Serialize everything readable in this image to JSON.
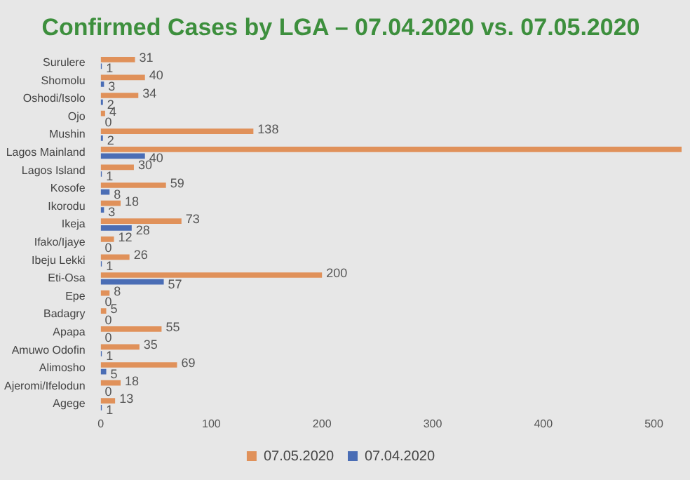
{
  "chart_data": {
    "type": "bar",
    "orientation": "horizontal",
    "title": "Confirmed Cases by LGA – 07.04.2020 vs. 07.05.2020",
    "categories": [
      "Surulere",
      "Shomolu",
      "Oshodi/Isolo",
      "Ojo",
      "Mushin",
      "Lagos Mainland",
      "Lagos Island",
      "Kosofe",
      "Ikorodu",
      "Ikeja",
      "Ifako/Ijaye",
      "Ibeju Lekki",
      "Eti-Osa",
      "Epe",
      "Badagry",
      "Apapa",
      "Amuwo Odofin",
      "Alimosho",
      "Ajeromi/Ifelodun",
      "Agege"
    ],
    "series": [
      {
        "name": "07.05.2020",
        "color": "#e0915a",
        "values": [
          31,
          40,
          34,
          4,
          138,
          525,
          30,
          59,
          18,
          73,
          12,
          26,
          200,
          8,
          5,
          55,
          35,
          69,
          18,
          13
        ],
        "value_labels": [
          "31",
          "40",
          "34",
          "4",
          "138",
          null,
          "30",
          "59",
          "18",
          "73",
          "12",
          "26",
          "200",
          "8",
          "5",
          "55",
          "35",
          "69",
          "18",
          "13"
        ]
      },
      {
        "name": "07.04.2020",
        "color": "#4a6db5",
        "values": [
          1,
          3,
          2,
          0,
          2,
          40,
          1,
          8,
          3,
          28,
          0,
          1,
          57,
          0,
          0,
          0,
          1,
          5,
          0,
          1
        ],
        "value_labels": [
          "1",
          "3",
          "2",
          "0",
          "2",
          "40",
          "1",
          "8",
          "3",
          "28",
          "0",
          "1",
          "57",
          "0",
          "0",
          "0",
          "1",
          "5",
          "0",
          "1"
        ]
      }
    ],
    "xlim": [
      0,
      525
    ],
    "xticks": [
      0,
      100,
      200,
      300,
      400,
      500
    ],
    "grid": false,
    "legend": "bottom"
  }
}
